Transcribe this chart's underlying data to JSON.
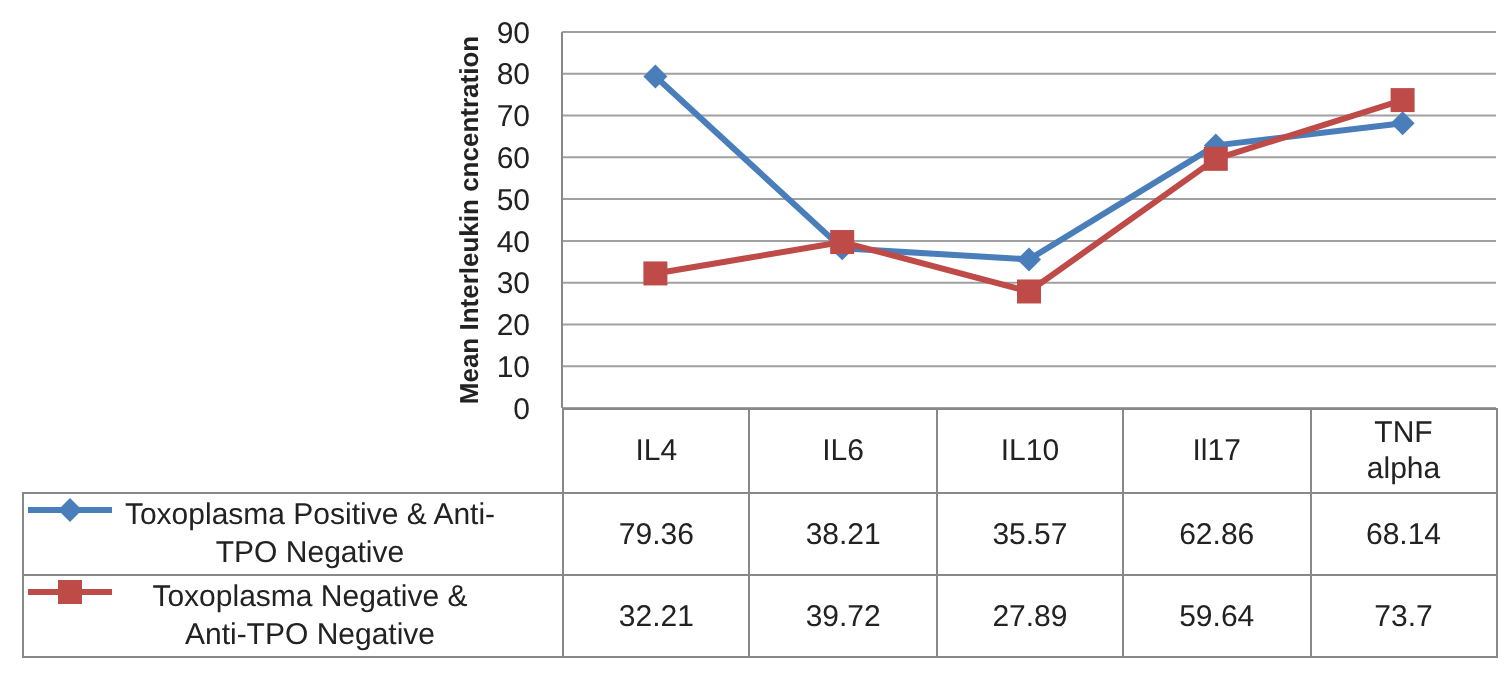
{
  "chart_data": {
    "type": "line",
    "ylabel": "Mean Interleukin cncentration",
    "categories": [
      "IL4",
      "IL6",
      "IL10",
      "Il17",
      "TNF alpha"
    ],
    "series": [
      {
        "name": "Toxoplasma Positive & Anti-TPO Negative",
        "color": "#4a7ebb",
        "marker": "diamond",
        "values": [
          79.36,
          38.21,
          35.57,
          62.86,
          68.14
        ]
      },
      {
        "name": "Toxoplasma Negative & Anti-TPO Negative",
        "color": "#be4b48",
        "marker": "square",
        "values": [
          32.21,
          39.72,
          27.89,
          59.64,
          73.7
        ]
      }
    ],
    "ylim": [
      0,
      90
    ],
    "yticks": [
      0,
      10,
      20,
      30,
      40,
      50,
      60,
      70,
      80,
      90
    ],
    "grid": "y",
    "legend": "bottom left",
    "data_labels": true
  }
}
